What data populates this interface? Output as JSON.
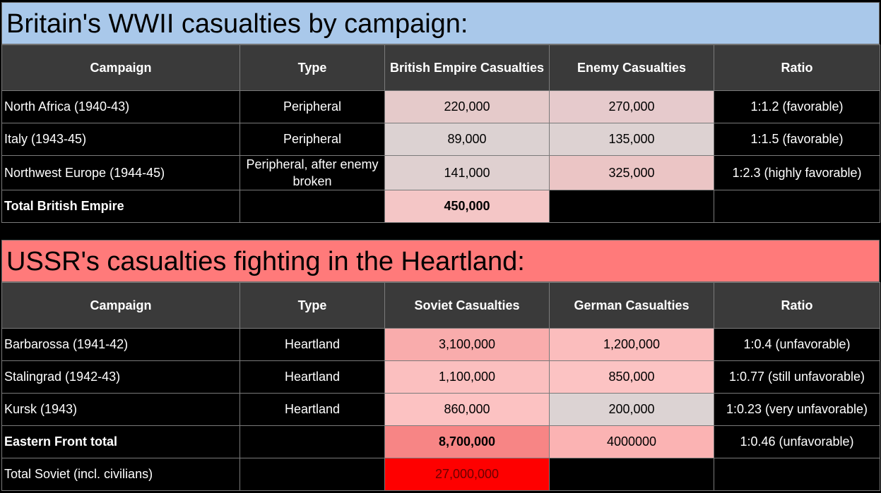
{
  "colors": {
    "britain_title_bg": "#a9c8ea",
    "ussr_title_bg": "#ff7a7a",
    "header_bg": "#3a3a3a",
    "pale_pink": "#e5caca",
    "pale_grey": "#dcd2d2",
    "light_pink": "#f8b8b8",
    "mid_pink": "#fbb3b3",
    "total_pink": "#f4c6c6",
    "salmon": "#f78585",
    "red": "#fe0000"
  },
  "britain": {
    "title": "Britain's WWII casualties by campaign:",
    "headers": [
      "Campaign",
      "Type",
      "British Empire Casualties",
      "Enemy Casualties",
      "Ratio"
    ],
    "rows": [
      {
        "campaign": "North Africa (1940-43)",
        "type": "Peripheral",
        "own": "220,000",
        "enemy": "270,000",
        "ratio": "1:1.2 (favorable)"
      },
      {
        "campaign": "Italy (1943-45)",
        "type": "Peripheral",
        "own": "89,000",
        "enemy": "135,000",
        "ratio": "1:1.5 (favorable)"
      },
      {
        "campaign": "Northwest Europe (1944-45)",
        "type": "Peripheral, after enemy broken",
        "own": "141,000",
        "enemy": "325,000",
        "ratio": "1:2.3 (highly favorable)"
      }
    ],
    "total": {
      "campaign": "Total British Empire",
      "own": "450,000"
    }
  },
  "ussr": {
    "title": "USSR's casualties fighting in the Heartland:",
    "headers": [
      "Campaign",
      "Type",
      "Soviet Casualties",
      "German Casualties",
      "Ratio"
    ],
    "rows": [
      {
        "campaign": "Barbarossa (1941-42)",
        "type": "Heartland",
        "own": "3,100,000",
        "enemy": "1,200,000",
        "ratio": "1:0.4 (unfavorable)"
      },
      {
        "campaign": "Stalingrad (1942-43)",
        "type": "Heartland",
        "own": "1,100,000",
        "enemy": "850,000",
        "ratio": "1:0.77 (still unfavorable)"
      },
      {
        "campaign": "Kursk (1943)",
        "type": "Heartland",
        "own": "860,000",
        "enemy": "200,000",
        "ratio": "1:0.23 (very unfavorable)"
      }
    ],
    "eastern_total": {
      "campaign": "Eastern Front total",
      "own": "8,700,000",
      "enemy": "4000000",
      "ratio": "1:0.46 (unfavorable)"
    },
    "soviet_total": {
      "campaign": "Total Soviet (incl. civilians)",
      "own": "27,000,000"
    }
  }
}
